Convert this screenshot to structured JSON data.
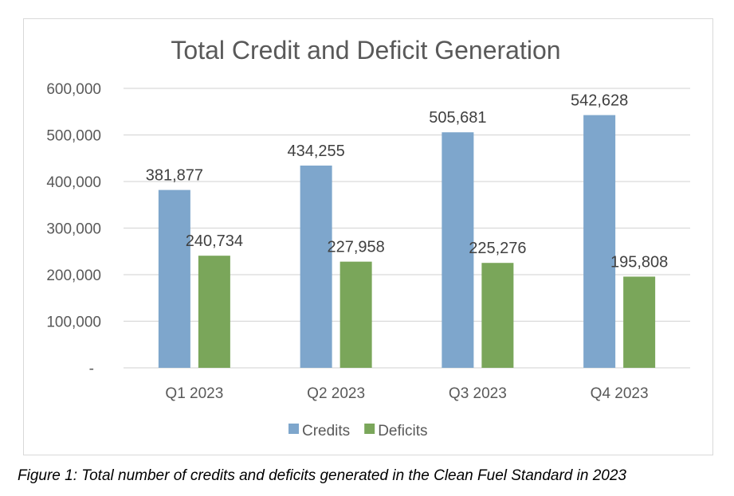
{
  "chart_data": {
    "type": "bar",
    "title": "Total Credit and Deficit Generation",
    "xlabel": "",
    "ylabel": "",
    "categories": [
      "Q1 2023",
      "Q2 2023",
      "Q3 2023",
      "Q4 2023"
    ],
    "series": [
      {
        "name": "Credits",
        "color": "#7ea6cc",
        "values": [
          381877,
          434255,
          505681,
          542628
        ],
        "labels": [
          "381,877",
          "434,255",
          "505,681",
          "542,628"
        ]
      },
      {
        "name": "Deficits",
        "color": "#7aa65a",
        "values": [
          240734,
          227958,
          225276,
          195808
        ],
        "labels": [
          "240,734",
          "227,958",
          "225,276",
          "195,808"
        ]
      }
    ],
    "ylim": [
      0,
      600000
    ],
    "yticks": [
      0,
      100000,
      200000,
      300000,
      400000,
      500000,
      600000
    ],
    "ytick_labels": [
      "-",
      "100,000",
      "200,000",
      "300,000",
      "400,000",
      "500,000",
      "600,000"
    ],
    "grid": true,
    "legend": "bottom"
  },
  "caption": "Figure 1: Total number of credits and deficits generated in the Clean Fuel Standard in 2023"
}
